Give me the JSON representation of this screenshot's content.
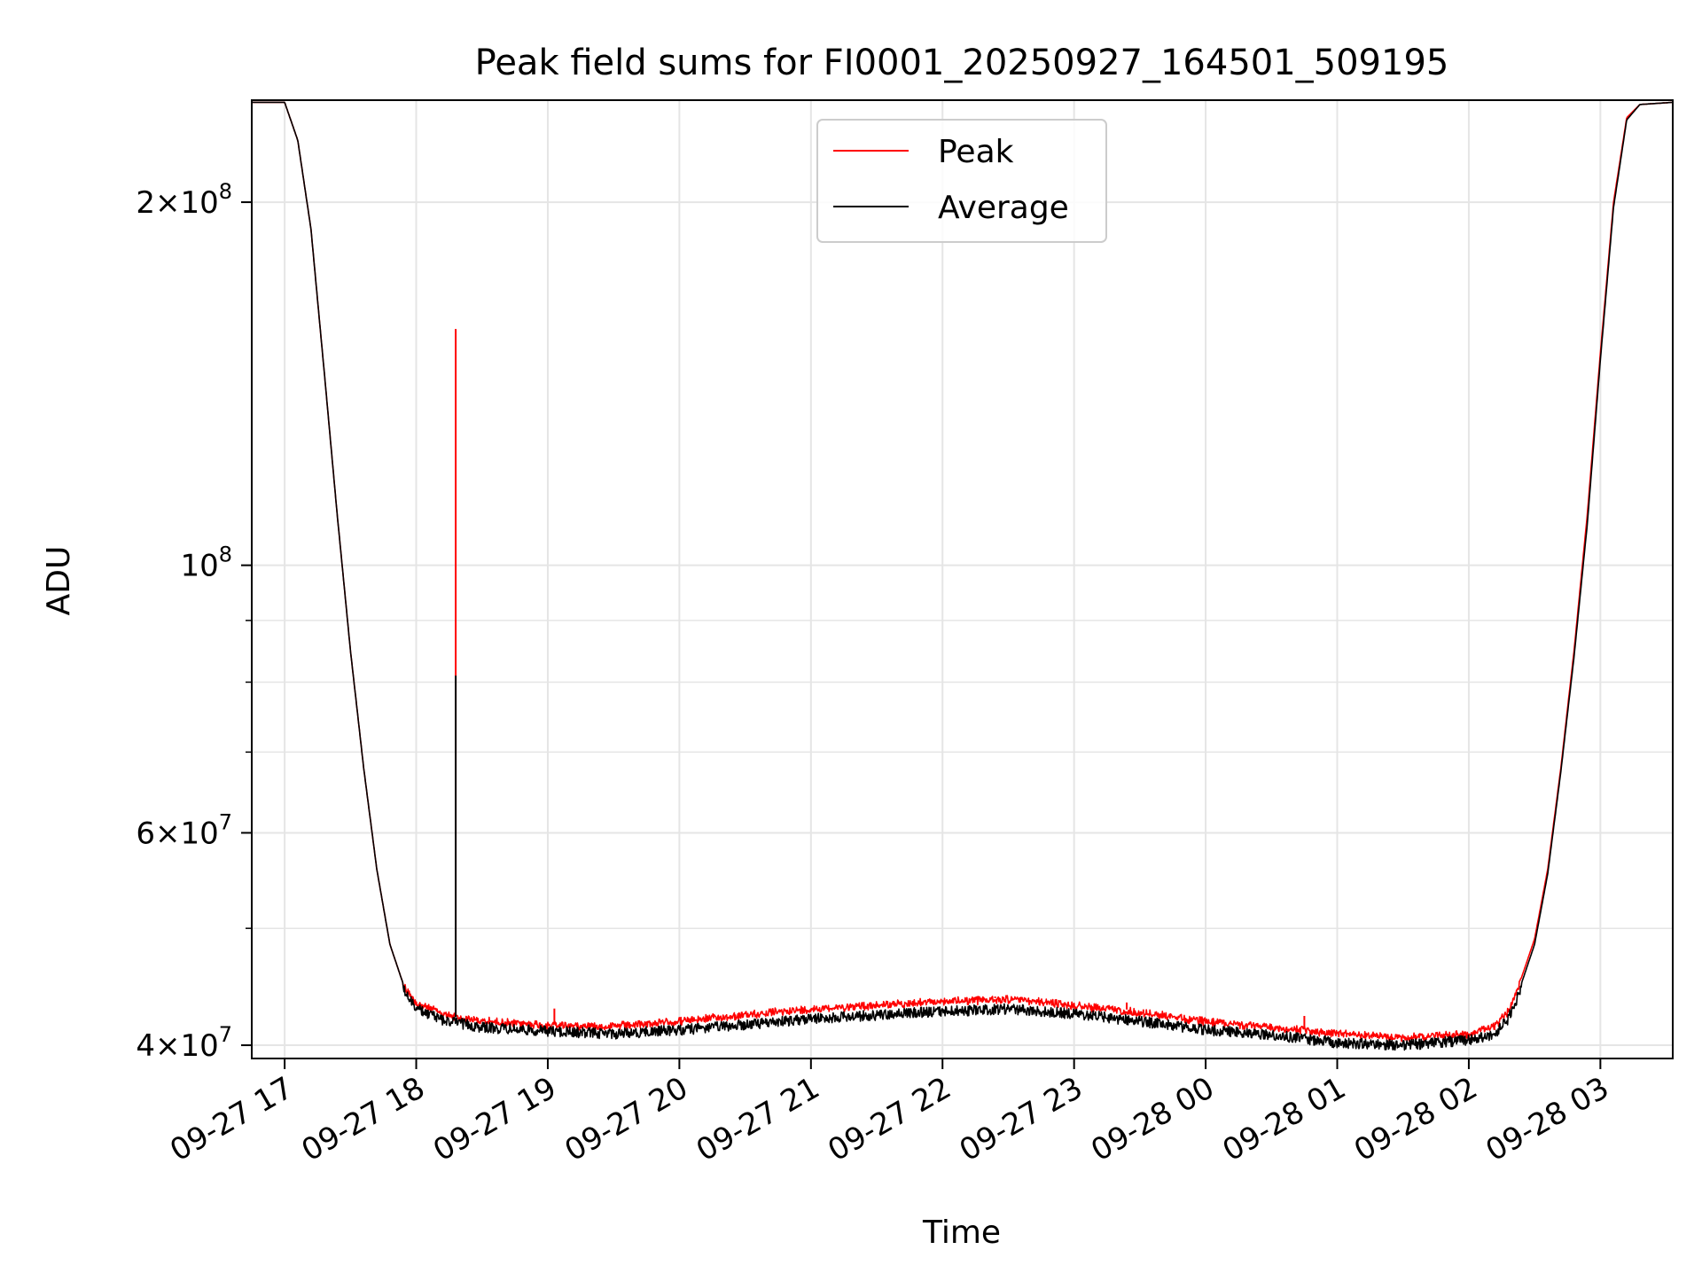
{
  "chart_data": {
    "type": "line",
    "title": "Peak field sums for FI0001_20250927_164501_509195",
    "xlabel": "Time",
    "ylabel": "ADU",
    "yscale": "log",
    "ylim": [
      39000000,
      243000000
    ],
    "xlim_hours_from_0927_17": [
      -0.25,
      10.55
    ],
    "grid": true,
    "legend_position": "upper center",
    "x_tick_labels": [
      "09-27 17",
      "09-27 18",
      "09-27 19",
      "09-27 20",
      "09-27 21",
      "09-27 22",
      "09-27 23",
      "09-28 00",
      "09-28 01",
      "09-28 02",
      "09-28 03"
    ],
    "x_tick_hours": [
      0,
      1,
      2,
      3,
      4,
      5,
      6,
      7,
      8,
      9,
      10
    ],
    "y_ticks": [
      {
        "value": 40000000,
        "mantissa": "4",
        "exp": "7"
      },
      {
        "value": 60000000,
        "mantissa": "6",
        "exp": "7"
      },
      {
        "value": 100000000,
        "mantissa": "",
        "exp": "8"
      },
      {
        "value": 200000000,
        "mantissa": "2",
        "exp": "8"
      }
    ],
    "y_minor_ticks": [
      50000000,
      70000000,
      80000000,
      90000000
    ],
    "series": [
      {
        "name": "Peak",
        "color": "#ff0000",
        "x_hours": [
          -0.25,
          0.0,
          0.1,
          0.2,
          0.3,
          0.4,
          0.5,
          0.6,
          0.7,
          0.8,
          0.9,
          1.0,
          1.2,
          1.3,
          1.5,
          2.0,
          2.5,
          3.0,
          3.5,
          4.0,
          4.5,
          5.0,
          5.5,
          6.0,
          6.5,
          7.0,
          7.5,
          8.0,
          8.5,
          9.0,
          9.2,
          9.3,
          9.4,
          9.5,
          9.6,
          9.7,
          9.8,
          9.9,
          10.0,
          10.1,
          10.2,
          10.3,
          10.55
        ],
        "values": [
          242000000,
          242000000,
          225000000,
          190000000,
          145000000,
          110000000,
          85000000,
          68000000,
          56000000,
          48500000,
          45000000,
          43500000,
          42600000,
          42300000,
          42000000,
          41700000,
          41600000,
          42000000,
          42500000,
          43000000,
          43300000,
          43600000,
          43800000,
          43300000,
          42700000,
          42000000,
          41500000,
          41000000,
          40700000,
          41000000,
          41600000,
          42800000,
          45500000,
          49000000,
          56000000,
          68000000,
          85000000,
          110000000,
          150000000,
          200000000,
          235000000,
          241000000,
          242000000
        ],
        "spikes": [
          {
            "hour": 1.3,
            "value": 157000000
          },
          {
            "hour": 2.05,
            "value": 42900000
          },
          {
            "hour": 5.4,
            "value": 43900000
          },
          {
            "hour": 6.4,
            "value": 43400000
          },
          {
            "hour": 7.75,
            "value": 42300000
          }
        ]
      },
      {
        "name": "Average",
        "color": "#000000",
        "x_hours": [
          -0.25,
          0.0,
          0.1,
          0.2,
          0.3,
          0.4,
          0.5,
          0.6,
          0.7,
          0.8,
          0.9,
          1.0,
          1.2,
          1.3,
          1.5,
          2.0,
          2.5,
          3.0,
          3.5,
          4.0,
          4.5,
          5.0,
          5.5,
          6.0,
          6.5,
          7.0,
          7.5,
          8.0,
          8.5,
          9.0,
          9.2,
          9.3,
          9.4,
          9.5,
          9.6,
          9.7,
          9.8,
          9.9,
          10.0,
          10.1,
          10.2,
          10.3,
          10.55
        ],
        "values": [
          242000000,
          242000000,
          225000000,
          190000000,
          145000000,
          110000000,
          85000000,
          68000000,
          56000000,
          48500000,
          45000000,
          43300000,
          42400000,
          42200000,
          41800000,
          41500000,
          41300000,
          41600000,
          42000000,
          42500000,
          42800000,
          43100000,
          43300000,
          42900000,
          42300000,
          41600000,
          41200000,
          40600000,
          40400000,
          40800000,
          41300000,
          42500000,
          45000000,
          48500000,
          55500000,
          67500000,
          84000000,
          108000000,
          148000000,
          198000000,
          234000000,
          241000000,
          242000000
        ],
        "spikes": [
          {
            "hour": 1.3,
            "value": 81000000
          }
        ]
      }
    ]
  }
}
